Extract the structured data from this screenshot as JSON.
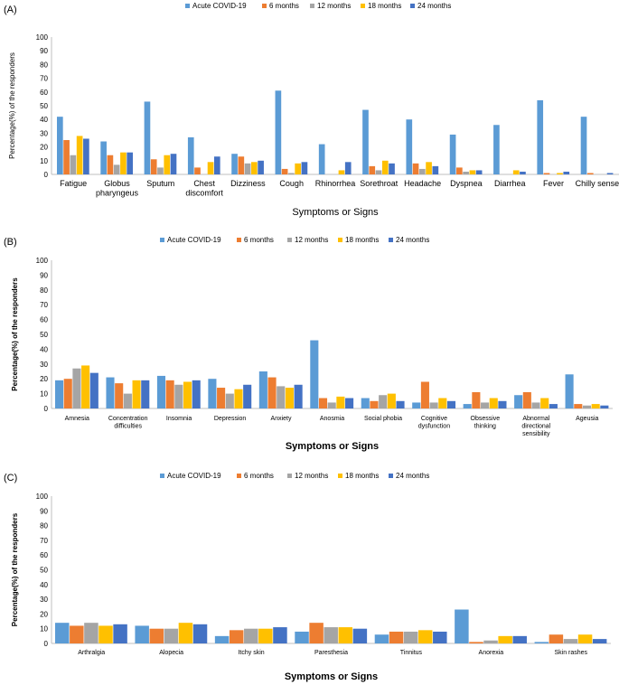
{
  "series_colors": [
    "#5b9bd5",
    "#ed7d31",
    "#a5a5a5",
    "#ffc000",
    "#4472c4"
  ],
  "chart_data": [
    {
      "type": "bar",
      "panel_label": "(A)",
      "ylabel": "Percentage(%) of the responders",
      "xlabel": "Symptoms or Signs",
      "ylim": [
        0,
        100
      ],
      "yticks": [
        "0",
        "10",
        "20",
        "30",
        "40",
        "50",
        "60",
        "70",
        "80",
        "90",
        "100"
      ],
      "legend_position": "top",
      "categories": [
        [
          "Fatigue"
        ],
        [
          "Globus",
          "pharyngeus"
        ],
        [
          "Sputum"
        ],
        [
          "Chest",
          "discomfort"
        ],
        [
          "Dizziness"
        ],
        [
          "Cough"
        ],
        [
          "Rhinorrhea"
        ],
        [
          "Sorethroat"
        ],
        [
          "Headache"
        ],
        [
          "Dyspnea"
        ],
        [
          "Diarrhea"
        ],
        [
          "Fever"
        ],
        [
          "Chilly sense"
        ]
      ],
      "series": [
        {
          "name": "Acute COVID-19",
          "values": [
            42,
            24,
            53,
            27,
            15,
            61,
            22,
            47,
            40,
            29,
            36,
            54,
            42
          ]
        },
        {
          "name": "6 months",
          "values": [
            25,
            14,
            11,
            5,
            13,
            4,
            0,
            6,
            8,
            5,
            0,
            1,
            1
          ]
        },
        {
          "name": "12 months",
          "values": [
            14,
            7,
            5,
            0,
            8,
            1,
            0,
            3,
            4,
            2,
            0,
            0,
            0
          ]
        },
        {
          "name": "18 months",
          "values": [
            28,
            16,
            14,
            9,
            9,
            8,
            3,
            10,
            9,
            3,
            3,
            1,
            0
          ]
        },
        {
          "name": "24 months",
          "values": [
            26,
            16,
            15,
            13,
            10,
            9,
            9,
            8,
            6,
            3,
            2,
            2,
            1
          ]
        }
      ]
    },
    {
      "type": "bar",
      "panel_label": "(B)",
      "ylabel": "Percentage(%) of the responders",
      "xlabel": "Symptoms or Signs",
      "ylim": [
        0,
        100
      ],
      "yticks": [
        "0",
        "10",
        "20",
        "30",
        "40",
        "50",
        "60",
        "70",
        "80",
        "90",
        "100"
      ],
      "legend_position": "top",
      "categories": [
        [
          "Amnesia"
        ],
        [
          "Concentration",
          "difficulties"
        ],
        [
          "Insomnia"
        ],
        [
          "Depression"
        ],
        [
          "Anxiety"
        ],
        [
          "Anosmia"
        ],
        [
          "Social phobia"
        ],
        [
          "Cognitive",
          "dysfunction"
        ],
        [
          "Obsessive",
          "thinking"
        ],
        [
          "Abnormal",
          "directional",
          "sensibility"
        ],
        [
          "Ageusia"
        ]
      ],
      "series": [
        {
          "name": "Acute COVID-19",
          "values": [
            19,
            21,
            22,
            20,
            25,
            46,
            7,
            4,
            3,
            9,
            23
          ]
        },
        {
          "name": "6 months",
          "values": [
            20,
            17,
            19,
            14,
            21,
            7,
            5,
            18,
            11,
            11,
            3
          ]
        },
        {
          "name": "12 months",
          "values": [
            27,
            10,
            16,
            10,
            15,
            4,
            9,
            4,
            4,
            4,
            2
          ]
        },
        {
          "name": "18 months",
          "values": [
            29,
            19,
            18,
            13,
            14,
            8,
            10,
            7,
            7,
            7,
            3
          ]
        },
        {
          "name": "24 months",
          "values": [
            24,
            19,
            19,
            16,
            16,
            7,
            5,
            5,
            5,
            3,
            2
          ]
        }
      ]
    },
    {
      "type": "bar",
      "panel_label": "(C)",
      "ylabel": "Percentage(%) of the responders",
      "xlabel": "Symptoms or Signs",
      "ylim": [
        0,
        100
      ],
      "yticks": [
        "0",
        "10",
        "20",
        "30",
        "40",
        "50",
        "60",
        "70",
        "80",
        "90",
        "100"
      ],
      "legend_position": "top",
      "categories": [
        [
          "Arthralgia"
        ],
        [
          "Alopecia"
        ],
        [
          "Itchy skin"
        ],
        [
          "Paresthesia"
        ],
        [
          "Tinnitus"
        ],
        [
          "Anorexia"
        ],
        [
          "Skin rashes"
        ]
      ],
      "series": [
        {
          "name": "Acute COVID-19",
          "values": [
            14,
            12,
            5,
            8,
            6,
            23,
            1
          ]
        },
        {
          "name": "6 months",
          "values": [
            12,
            10,
            9,
            14,
            8,
            1,
            6
          ]
        },
        {
          "name": "12 months",
          "values": [
            14,
            10,
            10,
            11,
            8,
            2,
            3
          ]
        },
        {
          "name": "18 months",
          "values": [
            12,
            14,
            10,
            11,
            9,
            5,
            6
          ]
        },
        {
          "name": "24 months",
          "values": [
            13,
            13,
            11,
            10,
            8,
            5,
            3
          ]
        }
      ]
    }
  ]
}
